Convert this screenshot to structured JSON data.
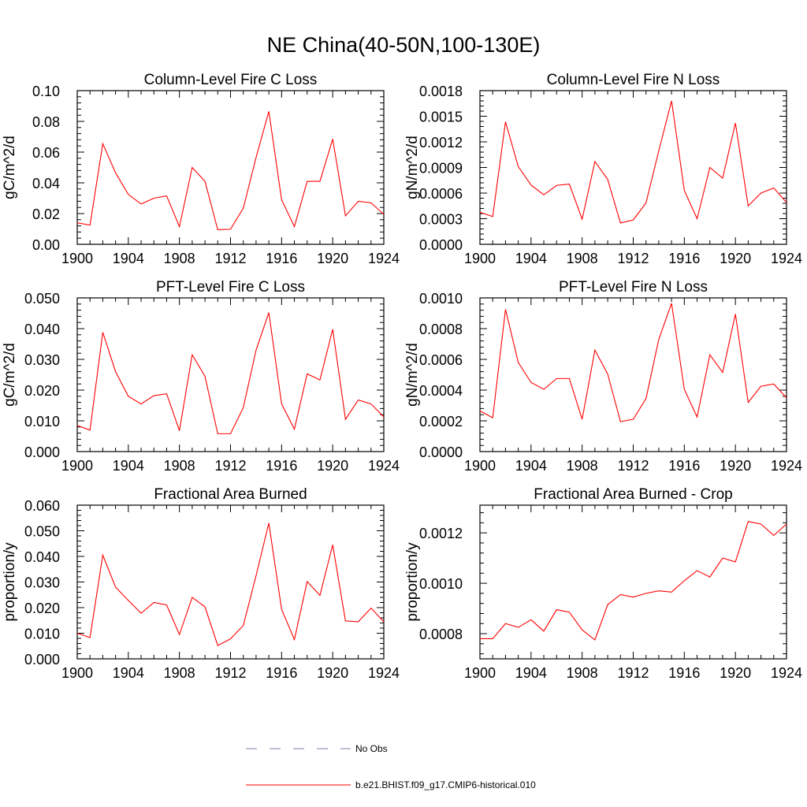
{
  "title": "NE China(40-50N,100-130E)",
  "colors": {
    "series": "#ff0000",
    "obs": "#7f7fb2",
    "axis": "#000000"
  },
  "legend": {
    "placement": "bottom-center",
    "entries": [
      {
        "label": "No Obs",
        "style": "dashed",
        "color": "#7f7fb2"
      },
      {
        "label": "b.e21.BHIST.f09_g17.CMIP6-historical.010",
        "style": "solid",
        "color": "#ff0000"
      }
    ]
  },
  "chart_data": [
    {
      "type": "line",
      "title": "Column-Level Fire C Loss",
      "ylabel": "gC/m^2/d",
      "xlim": [
        1900,
        1924
      ],
      "ylim": [
        0,
        0.1
      ],
      "xticks": [
        1900,
        1904,
        1908,
        1912,
        1916,
        1920,
        1924
      ],
      "xtick_labels": [
        "1900",
        "1904",
        "1908",
        "1912",
        "1916",
        "1920",
        "1924"
      ],
      "yticks": [
        0,
        0.02,
        0.04,
        0.06,
        0.08,
        0.1
      ],
      "ytick_labels": [
        "0.00",
        "0.02",
        "0.04",
        "0.06",
        "0.08",
        "0.10"
      ],
      "x": [
        1900,
        1901,
        1902,
        1903,
        1904,
        1905,
        1906,
        1907,
        1908,
        1909,
        1910,
        1911,
        1912,
        1913,
        1914,
        1915,
        1916,
        1917,
        1918,
        1919,
        1920,
        1921,
        1922,
        1923,
        1924
      ],
      "series": [
        {
          "values": [
            0.014,
            0.0125,
            0.0655,
            0.0465,
            0.0325,
            0.0262,
            0.03,
            0.0315,
            0.0115,
            0.05,
            0.041,
            0.0095,
            0.0098,
            0.0235,
            0.0565,
            0.0865,
            0.029,
            0.0115,
            0.041,
            0.041,
            0.0685,
            0.0185,
            0.028,
            0.027,
            0.0195
          ]
        }
      ]
    },
    {
      "type": "line",
      "title": "Column-Level Fire N Loss",
      "ylabel": "gN/m^2/d",
      "xlim": [
        1900,
        1924
      ],
      "ylim": [
        0,
        0.0018
      ],
      "xticks": [
        1900,
        1904,
        1908,
        1912,
        1916,
        1920,
        1924
      ],
      "xtick_labels": [
        "1900",
        "1904",
        "1908",
        "1912",
        "1916",
        "1920",
        "1924"
      ],
      "yticks": [
        0,
        0.0003,
        0.0006,
        0.0009,
        0.0012,
        0.0015,
        0.0018
      ],
      "ytick_labels": [
        "0.0000",
        "0.0003",
        "0.0006",
        "0.0009",
        "0.0012",
        "0.0015",
        "0.0018"
      ],
      "x": [
        1900,
        1901,
        1902,
        1903,
        1904,
        1905,
        1906,
        1907,
        1908,
        1909,
        1910,
        1911,
        1912,
        1913,
        1914,
        1915,
        1916,
        1917,
        1918,
        1919,
        1920,
        1921,
        1922,
        1923,
        1924
      ],
      "series": [
        {
          "values": [
            0.000375,
            0.000325,
            0.001435,
            0.00091,
            0.000695,
            0.00058,
            0.00069,
            0.000705,
            0.000295,
            0.00097,
            0.00076,
            0.00025,
            0.000285,
            0.000485,
            0.001095,
            0.00168,
            0.00063,
            0.0003,
            0.0009,
            0.000775,
            0.00142,
            0.00045,
            0.0006,
            0.00066,
            0.00049
          ]
        }
      ]
    },
    {
      "type": "line",
      "title": "PFT-Level Fire C Loss",
      "ylabel": "gC/m^2/d",
      "xlim": [
        1900,
        1924
      ],
      "ylim": [
        0,
        0.05
      ],
      "xticks": [
        1900,
        1904,
        1908,
        1912,
        1916,
        1920,
        1924
      ],
      "xtick_labels": [
        "1900",
        "1904",
        "1908",
        "1912",
        "1916",
        "1920",
        "1924"
      ],
      "yticks": [
        0,
        0.01,
        0.02,
        0.03,
        0.04,
        0.05
      ],
      "ytick_labels": [
        "0.000",
        "0.010",
        "0.020",
        "0.030",
        "0.040",
        "0.050"
      ],
      "x": [
        1900,
        1901,
        1902,
        1903,
        1904,
        1905,
        1906,
        1907,
        1908,
        1909,
        1910,
        1911,
        1912,
        1913,
        1914,
        1915,
        1916,
        1917,
        1918,
        1919,
        1920,
        1921,
        1922,
        1923,
        1924
      ],
      "series": [
        {
          "values": [
            0.0085,
            0.007,
            0.0388,
            0.026,
            0.018,
            0.0155,
            0.0182,
            0.0188,
            0.0068,
            0.0315,
            0.0245,
            0.0058,
            0.0058,
            0.0143,
            0.033,
            0.0452,
            0.0155,
            0.0073,
            0.0253,
            0.0233,
            0.0398,
            0.0105,
            0.0168,
            0.0155,
            0.0113
          ]
        }
      ]
    },
    {
      "type": "line",
      "title": "PFT-Level Fire N Loss",
      "ylabel": "gN/m^2/d",
      "xlim": [
        1900,
        1924
      ],
      "ylim": [
        0,
        0.001
      ],
      "xticks": [
        1900,
        1904,
        1908,
        1912,
        1916,
        1920,
        1924
      ],
      "xtick_labels": [
        "1900",
        "1904",
        "1908",
        "1912",
        "1916",
        "1920",
        "1924"
      ],
      "yticks": [
        0,
        0.0002,
        0.0004,
        0.0006,
        0.0008,
        0.001
      ],
      "ytick_labels": [
        "0.0000",
        "0.0002",
        "0.0004",
        "0.0006",
        "0.0008",
        "0.0010"
      ],
      "x": [
        1900,
        1901,
        1902,
        1903,
        1904,
        1905,
        1906,
        1907,
        1908,
        1909,
        1910,
        1911,
        1912,
        1913,
        1914,
        1915,
        1916,
        1917,
        1918,
        1919,
        1920,
        1921,
        1922,
        1923,
        1924
      ],
      "series": [
        {
          "values": [
            0.000265,
            0.00022,
            0.000925,
            0.00058,
            0.00045,
            0.000405,
            0.000475,
            0.000475,
            0.00021,
            0.00066,
            0.000505,
            0.000195,
            0.00021,
            0.000345,
            0.00073,
            0.000965,
            0.000405,
            0.000225,
            0.00063,
            0.000515,
            0.000895,
            0.00032,
            0.000425,
            0.00044,
            0.00035
          ]
        }
      ]
    },
    {
      "type": "line",
      "title": "Fractional Area Burned",
      "ylabel": "proportion/y",
      "xlim": [
        1900,
        1924
      ],
      "ylim": [
        0,
        0.06
      ],
      "xticks": [
        1900,
        1904,
        1908,
        1912,
        1916,
        1920,
        1924
      ],
      "xtick_labels": [
        "1900",
        "1904",
        "1908",
        "1912",
        "1916",
        "1920",
        "1924"
      ],
      "yticks": [
        0,
        0.01,
        0.02,
        0.03,
        0.04,
        0.05,
        0.06
      ],
      "ytick_labels": [
        "0.000",
        "0.010",
        "0.020",
        "0.030",
        "0.040",
        "0.050",
        "0.060"
      ],
      "x": [
        1900,
        1901,
        1902,
        1903,
        1904,
        1905,
        1906,
        1907,
        1908,
        1909,
        1910,
        1911,
        1912,
        1913,
        1914,
        1915,
        1916,
        1917,
        1918,
        1919,
        1920,
        1921,
        1922,
        1923,
        1924
      ],
      "series": [
        {
          "values": [
            0.01,
            0.0083,
            0.0405,
            0.028,
            0.0228,
            0.0178,
            0.022,
            0.021,
            0.0095,
            0.024,
            0.0203,
            0.0052,
            0.0078,
            0.013,
            0.0325,
            0.053,
            0.0193,
            0.0075,
            0.0302,
            0.0248,
            0.0445,
            0.0148,
            0.0145,
            0.0198,
            0.0145
          ]
        }
      ]
    },
    {
      "type": "line",
      "title": "Fractional Area Burned - Crop",
      "ylabel": "proportion/y",
      "xlim": [
        1900,
        1924
      ],
      "ylim": [
        0.0007,
        0.00131
      ],
      "xticks": [
        1900,
        1904,
        1908,
        1912,
        1916,
        1920,
        1924
      ],
      "xtick_labels": [
        "1900",
        "1904",
        "1908",
        "1912",
        "1916",
        "1920",
        "1924"
      ],
      "yticks": [
        0.0008,
        0.001,
        0.0012
      ],
      "ytick_labels": [
        "0.0008",
        "0.0010",
        "0.0012"
      ],
      "x": [
        1900,
        1901,
        1902,
        1903,
        1904,
        1905,
        1906,
        1907,
        1908,
        1909,
        1910,
        1911,
        1912,
        1913,
        1914,
        1915,
        1916,
        1917,
        1918,
        1919,
        1920,
        1921,
        1922,
        1923,
        1924
      ],
      "series": [
        {
          "values": [
            0.00078,
            0.00078,
            0.00084,
            0.000825,
            0.000855,
            0.00081,
            0.000895,
            0.000885,
            0.000815,
            0.000775,
            0.000915,
            0.000955,
            0.000945,
            0.00096,
            0.00097,
            0.000965,
            0.00101,
            0.00105,
            0.001025,
            0.0011,
            0.001085,
            0.001245,
            0.001235,
            0.00119,
            0.001235
          ]
        }
      ]
    }
  ]
}
